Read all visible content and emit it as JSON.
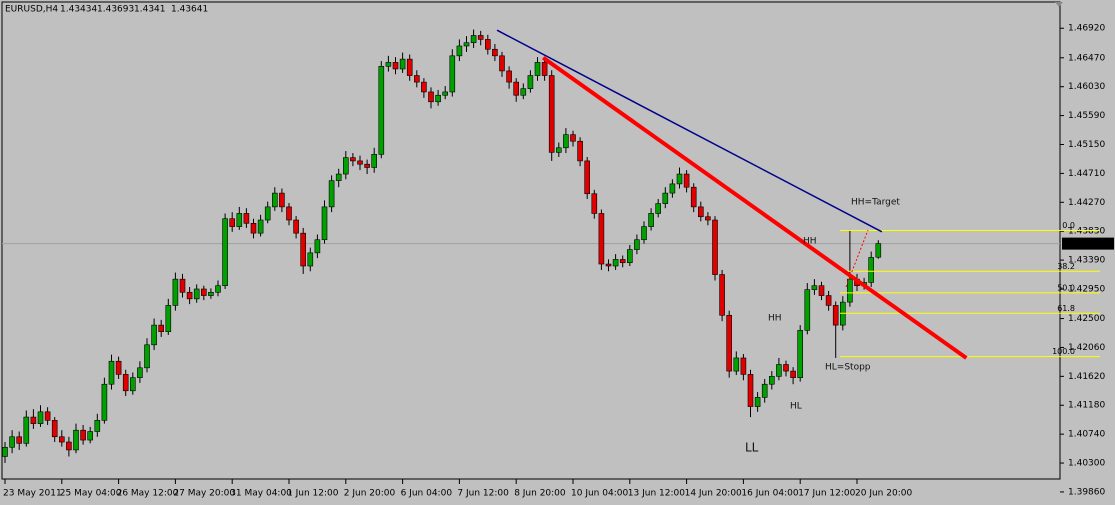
{
  "chart_data": {
    "type": "candlestick",
    "title": "EURUSD,H4",
    "background": "#c0c0c0",
    "up_color": "#00a000",
    "down_color": "#e00000",
    "wick_color": "#000000",
    "ylim": [
      1.3992,
      1.4735
    ],
    "yticks": [
      {
        "value": 1.4692,
        "label": "1.46920"
      },
      {
        "value": 1.4647,
        "label": "1.46470"
      },
      {
        "value": 1.4603,
        "label": "1.46030"
      },
      {
        "value": 1.4559,
        "label": "1.45590"
      },
      {
        "value": 1.4515,
        "label": "1.45150"
      },
      {
        "value": 1.4471,
        "label": "1.44710"
      },
      {
        "value": 1.4427,
        "label": "1.44270"
      },
      {
        "value": 1.4383,
        "label": "1.43830"
      },
      {
        "value": 1.4339,
        "label": "1.43390"
      },
      {
        "value": 1.4295,
        "label": "1.42950"
      },
      {
        "value": 1.425,
        "label": "1.42500"
      },
      {
        "value": 1.4206,
        "label": "1.42060"
      },
      {
        "value": 1.4162,
        "label": "1.41620"
      },
      {
        "value": 1.4118,
        "label": "1.41180"
      },
      {
        "value": 1.4074,
        "label": "1.40740"
      },
      {
        "value": 1.403,
        "label": "1.40300"
      },
      {
        "value": 1.3986,
        "label": "1.39860"
      }
    ],
    "categories": [
      "23 May 2011",
      null,
      null,
      null,
      null,
      null,
      null,
      null,
      "25 May 04:00",
      null,
      null,
      null,
      null,
      null,
      null,
      null,
      "26 May 12:00",
      null,
      null,
      null,
      null,
      null,
      null,
      null,
      "27 May 20:00",
      null,
      null,
      null,
      null,
      null,
      null,
      null,
      "31 May 04:00",
      null,
      null,
      null,
      null,
      null,
      null,
      null,
      "1 Jun 12:00",
      null,
      null,
      null,
      null,
      null,
      null,
      null,
      "2 Jun 20:00",
      null,
      null,
      null,
      null,
      null,
      null,
      null,
      "6 Jun 04:00",
      null,
      null,
      null,
      null,
      null,
      null,
      null,
      "7 Jun 12:00",
      null,
      null,
      null,
      null,
      null,
      null,
      null,
      "8 Jun 20:00",
      null,
      null,
      null,
      null,
      null,
      null,
      null,
      "10 Jun 04:00",
      null,
      null,
      null,
      null,
      null,
      null,
      null,
      "13 Jun 12:00",
      null,
      null,
      null,
      null,
      null,
      null,
      null,
      "14 Jun 20:00",
      null,
      null,
      null,
      null,
      null,
      null,
      null,
      "16 Jun 04:00",
      null,
      null,
      null,
      null,
      null,
      null,
      null,
      "17 Jun 12:00",
      null,
      null,
      null,
      null,
      null,
      null,
      null,
      "20 Jun 20:00",
      null,
      null,
      null
    ],
    "ohlc": [
      [
        1.404,
        1.4062,
        1.403,
        1.4054
      ],
      [
        1.4054,
        1.408,
        1.4045,
        1.407
      ],
      [
        1.407,
        1.4078,
        1.405,
        1.406
      ],
      [
        1.406,
        1.411,
        1.4055,
        1.41
      ],
      [
        1.41,
        1.4112,
        1.4082,
        1.409
      ],
      [
        1.409,
        1.4118,
        1.4085,
        1.4108
      ],
      [
        1.4108,
        1.4115,
        1.4088,
        1.4095
      ],
      [
        1.4095,
        1.41,
        1.4062,
        1.407
      ],
      [
        1.407,
        1.408,
        1.4055,
        1.4062
      ],
      [
        1.4062,
        1.407,
        1.404,
        1.405
      ],
      [
        1.405,
        1.409,
        1.4045,
        1.408
      ],
      [
        1.408,
        1.4088,
        1.4058,
        1.4065
      ],
      [
        1.4065,
        1.4085,
        1.406,
        1.4078
      ],
      [
        1.4078,
        1.4105,
        1.407,
        1.4095
      ],
      [
        1.4095,
        1.416,
        1.409,
        1.415
      ],
      [
        1.415,
        1.4195,
        1.4142,
        1.4185
      ],
      [
        1.4185,
        1.4192,
        1.4158,
        1.4165
      ],
      [
        1.4165,
        1.4172,
        1.4132,
        1.414
      ],
      [
        1.414,
        1.4168,
        1.4134,
        1.416
      ],
      [
        1.416,
        1.4185,
        1.4152,
        1.4175
      ],
      [
        1.4175,
        1.422,
        1.4168,
        1.421
      ],
      [
        1.421,
        1.425,
        1.4202,
        1.424
      ],
      [
        1.424,
        1.4248,
        1.4222,
        1.423
      ],
      [
        1.423,
        1.428,
        1.4225,
        1.427
      ],
      [
        1.427,
        1.432,
        1.4262,
        1.431
      ],
      [
        1.431,
        1.4318,
        1.4282,
        1.429
      ],
      [
        1.429,
        1.4298,
        1.4272,
        1.428
      ],
      [
        1.428,
        1.4302,
        1.4274,
        1.4295
      ],
      [
        1.4295,
        1.43,
        1.4278,
        1.4285
      ],
      [
        1.4285,
        1.4296,
        1.428,
        1.429
      ],
      [
        1.429,
        1.4308,
        1.4284,
        1.43
      ],
      [
        1.43,
        1.441,
        1.4295,
        1.4402
      ],
      [
        1.4402,
        1.4412,
        1.4382,
        1.439
      ],
      [
        1.439,
        1.442,
        1.4385,
        1.441
      ],
      [
        1.441,
        1.4418,
        1.4388,
        1.4395
      ],
      [
        1.4395,
        1.4402,
        1.4372,
        1.438
      ],
      [
        1.438,
        1.4408,
        1.4375,
        1.44
      ],
      [
        1.44,
        1.4428,
        1.4395,
        1.442
      ],
      [
        1.442,
        1.445,
        1.4414,
        1.4441
      ],
      [
        1.4441,
        1.4448,
        1.4412,
        1.442
      ],
      [
        1.442,
        1.4426,
        1.4392,
        1.44
      ],
      [
        1.44,
        1.4406,
        1.4372,
        1.438
      ],
      [
        1.438,
        1.4388,
        1.4318,
        1.433
      ],
      [
        1.433,
        1.4358,
        1.4322,
        1.435
      ],
      [
        1.435,
        1.4378,
        1.4342,
        1.437
      ],
      [
        1.437,
        1.443,
        1.4364,
        1.442
      ],
      [
        1.442,
        1.4468,
        1.4412,
        1.446
      ],
      [
        1.446,
        1.4478,
        1.445,
        1.447
      ],
      [
        1.447,
        1.4505,
        1.4462,
        1.4495
      ],
      [
        1.4495,
        1.4502,
        1.4482,
        1.449
      ],
      [
        1.449,
        1.4498,
        1.4476,
        1.4485
      ],
      [
        1.4485,
        1.4492,
        1.447,
        1.448
      ],
      [
        1.448,
        1.451,
        1.4472,
        1.45
      ],
      [
        1.45,
        1.4642,
        1.4494,
        1.4634
      ],
      [
        1.4634,
        1.465,
        1.4626,
        1.464
      ],
      [
        1.464,
        1.4648,
        1.4622,
        1.463
      ],
      [
        1.463,
        1.4655,
        1.4624,
        1.4645
      ],
      [
        1.4645,
        1.4652,
        1.4612,
        1.462
      ],
      [
        1.462,
        1.4628,
        1.4602,
        1.461
      ],
      [
        1.461,
        1.4616,
        1.4586,
        1.4595
      ],
      [
        1.4595,
        1.4602,
        1.457,
        1.458
      ],
      [
        1.458,
        1.4598,
        1.4574,
        1.459
      ],
      [
        1.459,
        1.4604,
        1.4584,
        1.4595
      ],
      [
        1.4595,
        1.466,
        1.4588,
        1.465
      ],
      [
        1.465,
        1.4675,
        1.4642,
        1.4665
      ],
      [
        1.4665,
        1.468,
        1.4656,
        1.467
      ],
      [
        1.467,
        1.469,
        1.4662,
        1.4681
      ],
      [
        1.4681,
        1.4688,
        1.4666,
        1.4675
      ],
      [
        1.4675,
        1.4682,
        1.4652,
        1.466
      ],
      [
        1.466,
        1.4668,
        1.4642,
        1.465
      ],
      [
        1.465,
        1.4656,
        1.4618,
        1.4627
      ],
      [
        1.4627,
        1.4634,
        1.46,
        1.461
      ],
      [
        1.461,
        1.4616,
        1.458,
        1.459
      ],
      [
        1.459,
        1.4608,
        1.4584,
        1.46
      ],
      [
        1.46,
        1.4628,
        1.4594,
        1.462
      ],
      [
        1.462,
        1.4648,
        1.4612,
        1.464
      ],
      [
        1.464,
        1.4646,
        1.4612,
        1.462
      ],
      [
        1.462,
        1.4628,
        1.449,
        1.4503
      ],
      [
        1.4503,
        1.4518,
        1.4496,
        1.451
      ],
      [
        1.451,
        1.454,
        1.4502,
        1.453
      ],
      [
        1.453,
        1.4536,
        1.4512,
        1.452
      ],
      [
        1.452,
        1.4526,
        1.4482,
        1.449
      ],
      [
        1.449,
        1.4496,
        1.4432,
        1.444
      ],
      [
        1.444,
        1.4446,
        1.4402,
        1.441
      ],
      [
        1.441,
        1.4416,
        1.4324,
        1.4333
      ],
      [
        1.4333,
        1.434,
        1.4322,
        1.433
      ],
      [
        1.433,
        1.4348,
        1.4324,
        1.434
      ],
      [
        1.434,
        1.4346,
        1.4328,
        1.4335
      ],
      [
        1.4335,
        1.4362,
        1.433,
        1.4355
      ],
      [
        1.4355,
        1.4378,
        1.4348,
        1.437
      ],
      [
        1.437,
        1.4398,
        1.4364,
        1.439
      ],
      [
        1.439,
        1.4418,
        1.4384,
        1.441
      ],
      [
        1.441,
        1.4432,
        1.4404,
        1.4425
      ],
      [
        1.4425,
        1.445,
        1.4418,
        1.4441
      ],
      [
        1.4441,
        1.4462,
        1.4434,
        1.4455
      ],
      [
        1.4455,
        1.448,
        1.4448,
        1.447
      ],
      [
        1.447,
        1.4476,
        1.4442,
        1.445
      ],
      [
        1.445,
        1.4456,
        1.4412,
        1.442
      ],
      [
        1.442,
        1.4428,
        1.4398,
        1.4405
      ],
      [
        1.4405,
        1.4412,
        1.4392,
        1.44
      ],
      [
        1.44,
        1.4406,
        1.4308,
        1.4317
      ],
      [
        1.4317,
        1.4324,
        1.4246,
        1.4255
      ],
      [
        1.4255,
        1.4262,
        1.416,
        1.417
      ],
      [
        1.417,
        1.42,
        1.4164,
        1.419
      ],
      [
        1.419,
        1.4196,
        1.4156,
        1.4165
      ],
      [
        1.4165,
        1.4172,
        1.41,
        1.4116
      ],
      [
        1.4116,
        1.4138,
        1.4108,
        1.413
      ],
      [
        1.413,
        1.4158,
        1.4122,
        1.415
      ],
      [
        1.415,
        1.417,
        1.4142,
        1.4162
      ],
      [
        1.4162,
        1.419,
        1.4156,
        1.418
      ],
      [
        1.418,
        1.4186,
        1.4162,
        1.417
      ],
      [
        1.417,
        1.4176,
        1.415,
        1.416
      ],
      [
        1.416,
        1.424,
        1.4154,
        1.4232
      ],
      [
        1.4232,
        1.4304,
        1.4226,
        1.4294
      ],
      [
        1.4294,
        1.431,
        1.4286,
        1.43
      ],
      [
        1.43,
        1.4306,
        1.4278,
        1.4285
      ],
      [
        1.4285,
        1.4292,
        1.4262,
        1.427
      ],
      [
        1.427,
        1.4276,
        1.419,
        1.424
      ],
      [
        1.424,
        1.4284,
        1.4232,
        1.4275
      ],
      [
        1.4275,
        1.4385,
        1.4268,
        1.431
      ],
      [
        1.431,
        1.4318,
        1.4292,
        1.43
      ],
      [
        1.43,
        1.4312,
        1.4294,
        1.4305
      ],
      [
        1.4305,
        1.4352,
        1.4298,
        1.4343
      ],
      [
        1.43434,
        1.43693,
        1.4341,
        1.43641
      ]
    ],
    "current_price": 1.43641,
    "trendlines": [
      {
        "color": "#00008b",
        "start": [
          69.3,
          1.4689
        ],
        "end": [
          123.5,
          1.4382
        ]
      },
      {
        "color": "#ff0000",
        "start": [
          75.8,
          1.4647
        ],
        "end": [
          135.4,
          1.419
        ]
      }
    ],
    "fib_color": "#ffff00",
    "fib_levels": [
      {
        "label": "0.0",
        "value": 1.4384
      },
      {
        "label": "38.2",
        "value": 1.4322
      },
      {
        "label": "50.0",
        "value": 1.4289
      },
      {
        "label": "61.8",
        "value": 1.4258
      },
      {
        "label": "100.0",
        "value": 1.4192
      }
    ],
    "annotations": [
      "HH=Target",
      "HH",
      "HH",
      "HL=Stopp",
      "HL",
      "LL"
    ]
  }
}
